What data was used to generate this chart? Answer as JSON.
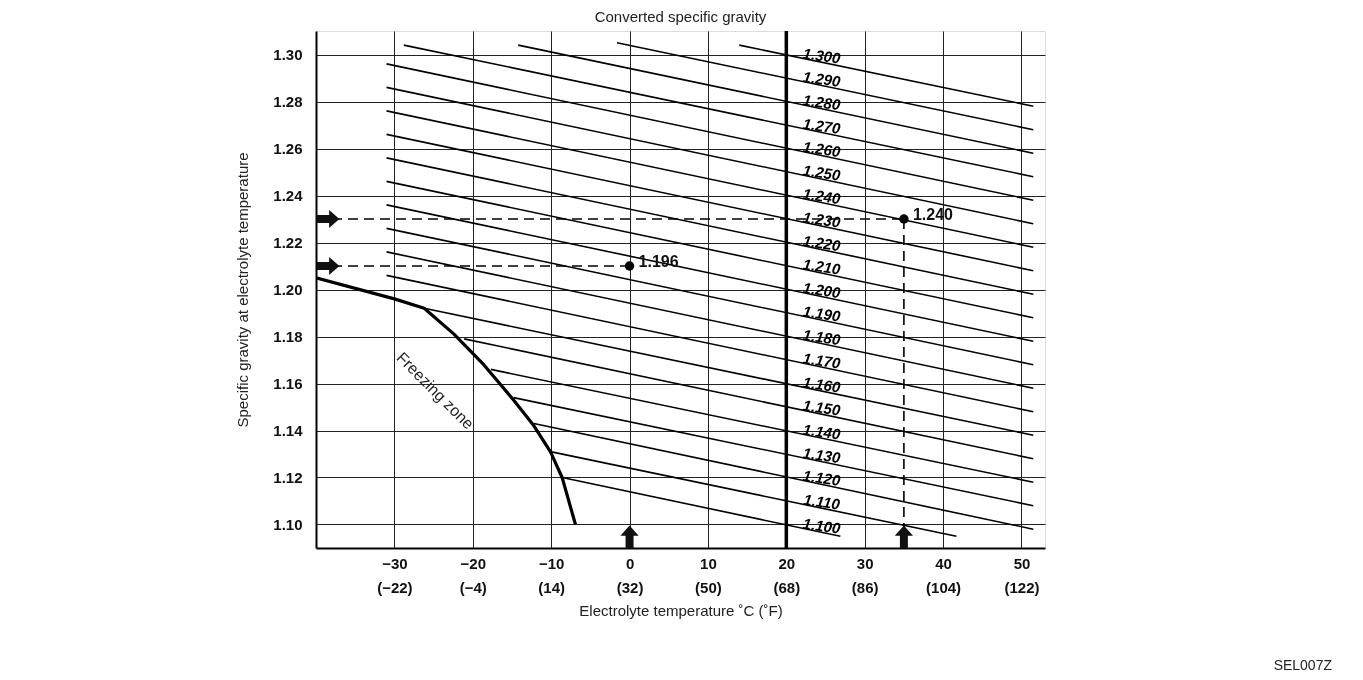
{
  "chart_data": {
    "type": "line",
    "title": "Converted specific gravity",
    "xlabel": "Electrolyte temperature ˚C (˚F)",
    "ylabel": "Specific gravity at electrolyte temperature",
    "xlim": [
      -40,
      53
    ],
    "ylim": [
      1.09,
      1.31
    ],
    "xticks": [
      -30,
      -20,
      -10,
      0,
      10,
      20,
      30,
      40,
      50
    ],
    "x2lim": [
      -40,
      127.4
    ],
    "x2ticks": [
      {
        "value": -22,
        "label": "(−22)"
      },
      {
        "value": -4,
        "label": "(−4)"
      },
      {
        "value": 14,
        "label": "(14)"
      },
      {
        "value": 32,
        "label": "(32)"
      },
      {
        "value": 50,
        "label": "(50)"
      },
      {
        "value": 68,
        "label": "(68)"
      },
      {
        "value": 86,
        "label": "(86)"
      },
      {
        "value": 104,
        "label": "(104)"
      },
      {
        "value": 122,
        "label": "(122)"
      }
    ],
    "yticks": [
      {
        "value": 1.1,
        "label": "1.10"
      },
      1.12,
      1.14,
      1.16,
      1.18,
      {
        "value": 1.2,
        "label": "1.20"
      },
      1.22,
      1.24,
      1.26,
      1.28,
      {
        "value": 1.3,
        "label": "1.30"
      }
    ],
    "grid": true,
    "series": [
      {
        "name": "1.300",
        "color": "#000000",
        "x": [
          14,
          51.5
        ],
        "values": [
          1.304,
          1.278
        ]
      },
      {
        "name": "1.290",
        "color": "#000000",
        "x": [
          -1.6,
          51.5
        ],
        "values": [
          1.305,
          1.268
        ]
      },
      {
        "name": "1.280",
        "color": "#000000",
        "x": [
          -14.2,
          51.5
        ],
        "values": [
          1.304,
          1.258
        ]
      },
      {
        "name": "1.270",
        "color": "#000000",
        "x": [
          -28.8,
          51.5
        ],
        "values": [
          1.304,
          1.248
        ]
      },
      {
        "name": "1.260",
        "color": "#000000",
        "x": [
          -31,
          51.5
        ],
        "values": [
          1.296,
          1.238
        ]
      },
      {
        "name": "1.250",
        "color": "#000000",
        "x": [
          -31,
          51.5
        ],
        "values": [
          1.286,
          1.228
        ]
      },
      {
        "name": "1.240",
        "color": "#000000",
        "x": [
          -31,
          51.5
        ],
        "values": [
          1.276,
          1.218
        ]
      },
      {
        "name": "1.230",
        "color": "#000000",
        "x": [
          -31,
          51.5
        ],
        "values": [
          1.266,
          1.208
        ]
      },
      {
        "name": "1.220",
        "color": "#000000",
        "x": [
          -31,
          51.5
        ],
        "values": [
          1.256,
          1.198
        ]
      },
      {
        "name": "1.210",
        "color": "#000000",
        "x": [
          -31,
          51.5
        ],
        "values": [
          1.246,
          1.188
        ]
      },
      {
        "name": "1.200",
        "color": "#000000",
        "x": [
          -31,
          51.5
        ],
        "values": [
          1.236,
          1.178
        ]
      },
      {
        "name": "1.190",
        "color": "#000000",
        "x": [
          -31,
          51.5
        ],
        "values": [
          1.226,
          1.168
        ]
      },
      {
        "name": "1.180",
        "color": "#000000",
        "x": [
          -31,
          51.5
        ],
        "values": [
          1.216,
          1.158
        ]
      },
      {
        "name": "1.170",
        "color": "#000000",
        "x": [
          -31,
          51.5
        ],
        "values": [
          1.206,
          1.148
        ]
      },
      {
        "name": "1.160",
        "color": "#000000",
        "x": [
          -26.2,
          51.5
        ],
        "values": [
          1.192,
          1.138
        ]
      },
      {
        "name": "1.150",
        "color": "#000000",
        "x": [
          -21.1,
          51.5
        ],
        "values": [
          1.179,
          1.128
        ]
      },
      {
        "name": "1.140",
        "color": "#000000",
        "x": [
          -17.7,
          51.5
        ],
        "values": [
          1.166,
          1.118
        ]
      },
      {
        "name": "1.130",
        "color": "#000000",
        "x": [
          -14.8,
          51.5
        ],
        "values": [
          1.154,
          1.108
        ]
      },
      {
        "name": "1.120",
        "color": "#000000",
        "x": [
          -12.2,
          51.5
        ],
        "values": [
          1.143,
          1.098
        ]
      },
      {
        "name": "1.110",
        "color": "#000000",
        "x": [
          -10.1,
          41.7
        ],
        "values": [
          1.131,
          1.095
        ]
      },
      {
        "name": "1.100",
        "color": "#000000",
        "x": [
          -8.6,
          26.9
        ],
        "values": [
          1.12,
          1.095
        ]
      },
      {
        "color": "#000000",
        "x": [
          -40,
          -30,
          -26.2,
          -22.4,
          -18.6,
          -14.8,
          -12.2,
          -10.1,
          -8.6,
          -6.9
        ],
        "values": [
          1.205,
          1.196,
          1.192,
          1.181,
          1.168,
          1.153,
          1.142,
          1.131,
          1.12,
          1.1
        ]
      },
      {
        "color": "#000000",
        "line_style": "dashed",
        "x": [
          -40,
          35
        ],
        "values": [
          1.23,
          1.23
        ]
      },
      {
        "color": "#000000",
        "line_style": "dashed",
        "x": [
          35,
          35
        ],
        "values": [
          1.23,
          1.09
        ]
      },
      {
        "color": "#000000",
        "line_style": "dashed",
        "x": [
          -40,
          0
        ],
        "values": [
          1.21,
          1.21
        ]
      },
      {
        "type": "scatter",
        "marker": "circle",
        "color": "#000000",
        "x": [
          0,
          35
        ],
        "values": [
          1.21,
          1.23
        ]
      }
    ],
    "ref_lines": [
      {
        "axis": "x",
        "value": 20,
        "color": "#000000"
      }
    ],
    "annotations": [
      {
        "text": "1.196",
        "x": 0,
        "y": 1.21
      },
      {
        "text": "1.240",
        "x": 35,
        "y": 1.23
      },
      "Freezing zone",
      "SEL007Z"
    ]
  }
}
